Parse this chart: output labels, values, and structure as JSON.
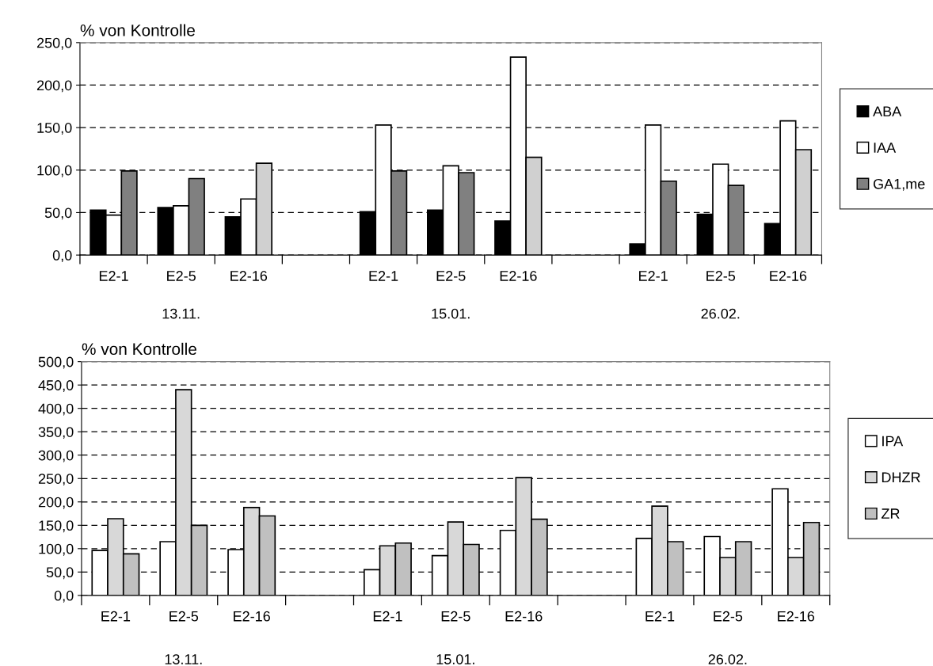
{
  "chart_data": [
    {
      "type": "bar",
      "ylabel": "% von Kontrolle",
      "categories": [
        "E2-1",
        "E2-5",
        "E2-16",
        null,
        "E2-1",
        "E2-5",
        "E2-16",
        null,
        "E2-1",
        "E2-5",
        "E2-16"
      ],
      "series": [
        {
          "name": "ABA",
          "color": "#000000",
          "values": [
            53,
            56,
            45,
            null,
            51,
            53,
            40,
            null,
            13,
            48,
            37
          ]
        },
        {
          "name": "IAA",
          "color": "#ffffff",
          "values": [
            47,
            58,
            66,
            null,
            153,
            105,
            233,
            null,
            153,
            107,
            158
          ]
        },
        {
          "name": "GA1,me",
          "color": "#808080",
          "colors": [
            "#808080",
            "#808080",
            "#d0d0d0",
            "#808080",
            "#808080",
            "#808080",
            "#d0d0d0",
            "#808080",
            "#808080",
            "#808080",
            "#d0d0d0"
          ],
          "values": [
            99,
            90,
            108,
            null,
            99,
            97,
            115,
            null,
            87,
            82,
            124
          ]
        }
      ],
      "ylim": [
        0,
        250
      ],
      "yticks": [
        {
          "value": 0,
          "label": "0,0"
        },
        {
          "value": 50,
          "label": "50,0"
        },
        {
          "value": 100,
          "label": "100,0"
        },
        {
          "value": 150,
          "label": "150,0"
        },
        {
          "value": 200,
          "label": "200,0"
        },
        {
          "value": 250,
          "label": "250,0"
        }
      ],
      "grid": "y",
      "legend": "right",
      "annotations": [
        "13.11.",
        "15.01.",
        "26.02."
      ]
    },
    {
      "type": "bar",
      "ylabel": "% von Kontrolle",
      "categories": [
        "E2-1",
        "E2-5",
        "E2-16",
        null,
        "E2-1",
        "E2-5",
        "E2-16",
        null,
        "E2-1",
        "E2-5",
        "E2-16"
      ],
      "series": [
        {
          "name": "IPA",
          "color": "#ffffff",
          "values": [
            96,
            115,
            98,
            null,
            55,
            85,
            139,
            null,
            122,
            126,
            228
          ]
        },
        {
          "name": "DHZR",
          "color": "#d8d8d8",
          "values": [
            164,
            440,
            188,
            null,
            106,
            157,
            252,
            null,
            191,
            81,
            81
          ]
        },
        {
          "name": "ZR",
          "color": "#c0c0c0",
          "values": [
            89,
            150,
            170,
            null,
            112,
            109,
            163,
            null,
            115,
            115,
            156
          ]
        }
      ],
      "ylim": [
        0,
        500
      ],
      "yticks": [
        {
          "value": 0,
          "label": "0,0"
        },
        {
          "value": 50,
          "label": "50,0"
        },
        {
          "value": 100,
          "label": "100,0"
        },
        {
          "value": 150,
          "label": "150,0"
        },
        {
          "value": 200,
          "label": "200,0"
        },
        {
          "value": 250,
          "label": "250,0"
        },
        {
          "value": 300,
          "label": "300,0"
        },
        {
          "value": 350,
          "label": "350,0"
        },
        {
          "value": 400,
          "label": "400,0"
        },
        {
          "value": 450,
          "label": "450,0"
        },
        {
          "value": 500,
          "label": "500,0"
        }
      ],
      "grid": "y",
      "legend": "right",
      "annotations": [
        "13.11.",
        "15.01.",
        "26.02."
      ]
    }
  ]
}
